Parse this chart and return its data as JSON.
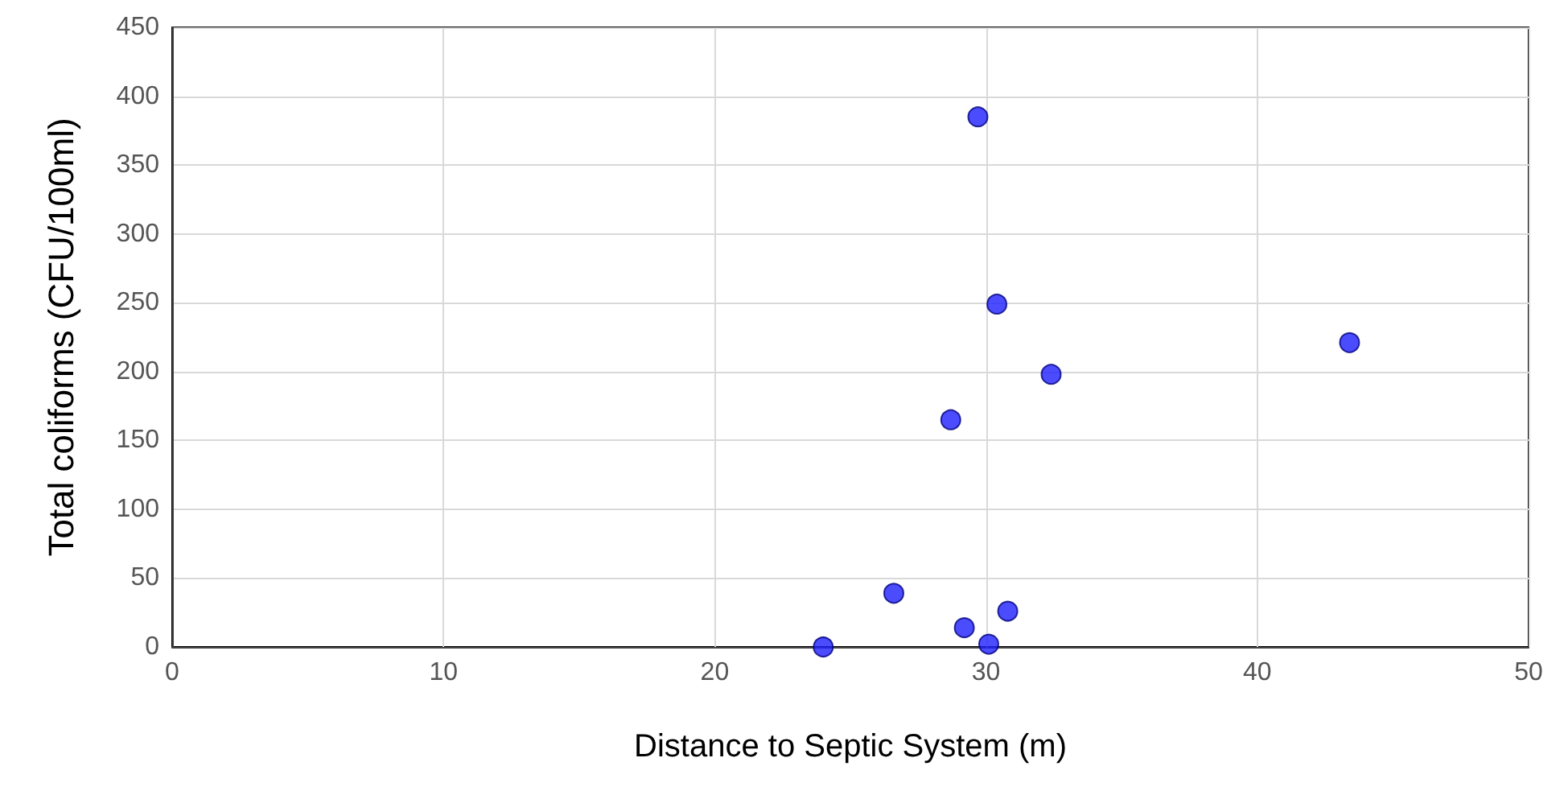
{
  "chart_data": {
    "type": "scatter",
    "xlabel": "Distance to Septic System (m)",
    "ylabel": "Total coliforms (CFU/100ml)",
    "x": [
      24.0,
      26.6,
      28.7,
      29.2,
      29.7,
      30.1,
      30.4,
      30.8,
      32.4,
      43.4
    ],
    "series": [
      {
        "color": "#1f1fff",
        "values": [
          0,
          39,
          165,
          14,
          385,
          2,
          249,
          26,
          198,
          221
        ]
      }
    ],
    "xlim": [
      0,
      50
    ],
    "xticks": [
      0,
      10,
      20,
      30,
      40,
      50
    ],
    "ylim": [
      0,
      450
    ],
    "yticks": [
      0,
      50,
      100,
      150,
      200,
      250,
      300,
      350,
      400,
      450
    ],
    "grid": true,
    "marker": "circle"
  }
}
